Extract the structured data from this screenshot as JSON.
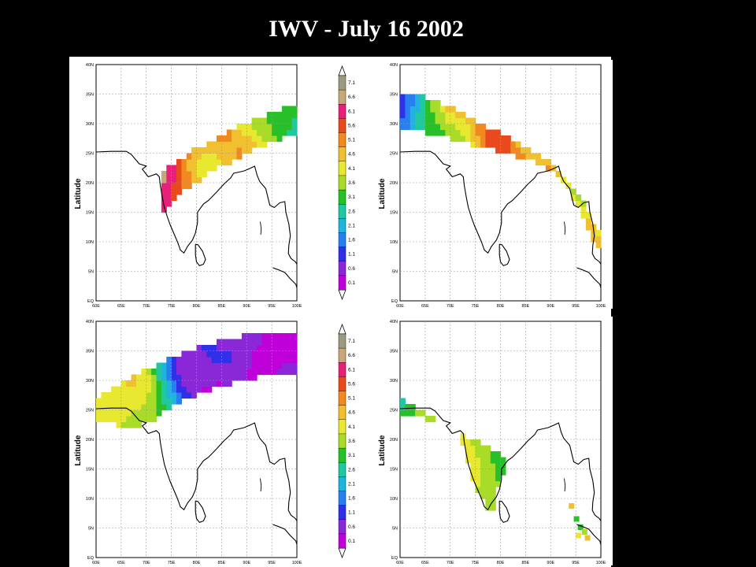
{
  "title": "IWV - July 16 2002",
  "axis": {
    "ylabel": "Latitude",
    "lat_ticks": [
      "40N",
      "35N",
      "30N",
      "25N",
      "20N",
      "15N",
      "10N",
      "5N",
      "EQ"
    ],
    "lon_ticks": [
      "60E",
      "65E",
      "70E",
      "75E",
      "80E",
      "85E",
      "90E",
      "95E",
      "100E"
    ]
  },
  "colorbar": {
    "labels": [
      "7.1",
      "6.6",
      "6.1",
      "5.6",
      "5.1",
      "4.6",
      "4.1",
      "3.6",
      "3.1",
      "2.6",
      "2.1",
      "1.6",
      "1.1",
      "0.6",
      "0.1"
    ],
    "colors": [
      "#9a9a80",
      "#c8a878",
      "#e8207a",
      "#e84a1e",
      "#f08a20",
      "#f0c030",
      "#e8e830",
      "#a8dc28",
      "#28c028",
      "#20c8a0",
      "#20b4dc",
      "#2880f0",
      "#3030e8",
      "#8a28d8",
      "#c000d8"
    ]
  },
  "panels": [
    {
      "id": "top-left"
    },
    {
      "id": "top-right"
    },
    {
      "id": "bottom-left"
    },
    {
      "id": "bottom-right"
    }
  ]
}
